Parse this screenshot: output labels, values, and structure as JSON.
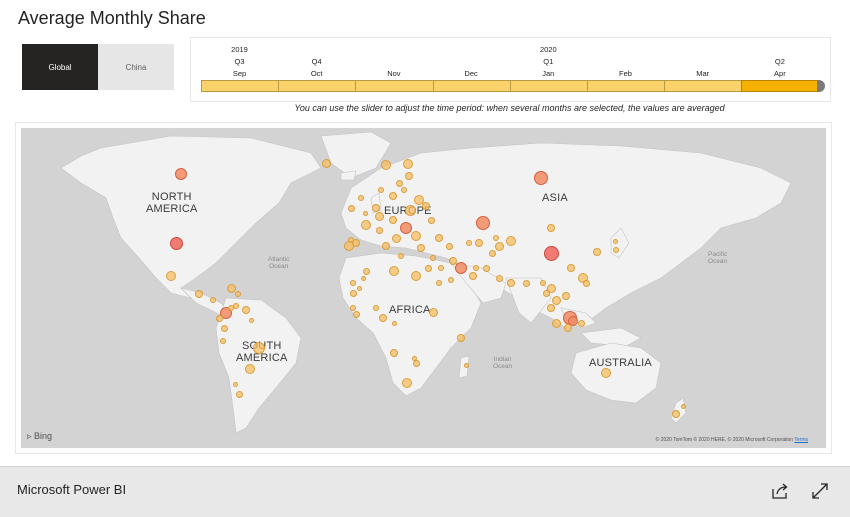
{
  "report": {
    "title": "Average Monthly Share",
    "segments": [
      "Global",
      "China"
    ],
    "timeline": {
      "columns": [
        {
          "year": "2019",
          "quarter": "Q3",
          "month": "Sep"
        },
        {
          "year": "",
          "quarter": "Q4",
          "month": "Oct"
        },
        {
          "year": "",
          "quarter": "",
          "month": "Nov"
        },
        {
          "year": "",
          "quarter": "",
          "month": "Dec"
        },
        {
          "year": "2020",
          "quarter": "Q1",
          "month": "Jan"
        },
        {
          "year": "",
          "quarter": "",
          "month": "Feb"
        },
        {
          "year": "",
          "quarter": "",
          "month": "Mar"
        },
        {
          "year": "",
          "quarter": "Q2",
          "month": "Apr"
        }
      ],
      "selected_month": "Apr",
      "hint": "You can use the slider to adjust the time period: when several months are selected, the values are averaged"
    }
  },
  "map": {
    "regions": {
      "north_america": [
        "NORTH",
        "AMERICA"
      ],
      "south_america": [
        "SOUTH",
        "AMERICA"
      ],
      "europe": "EUROPE",
      "africa": "AFRICA",
      "asia": "ASIA",
      "australia": "AUSTRALIA"
    },
    "oceans": {
      "atlantic": [
        "Atlantic",
        "Ocean"
      ],
      "pacific": [
        "Pacific",
        "Ocean"
      ],
      "indian": [
        "Indian",
        "Ocean"
      ]
    },
    "bing_label": "Bing",
    "copyright": "© 2020 TomTom © 2020 HERE, © 2020 Microsoft Corporation",
    "terms_label": "Terms",
    "colors": {
      "land": "#f2f2f2",
      "water": "#d3d3d3",
      "bubble_low": "#f6bd60",
      "bubble_mid": "#f28c64",
      "bubble_high": "#ee6e64"
    }
  },
  "footer": {
    "brand": "Microsoft Power BI",
    "icons": [
      "share-icon",
      "fullscreen-icon"
    ]
  }
}
